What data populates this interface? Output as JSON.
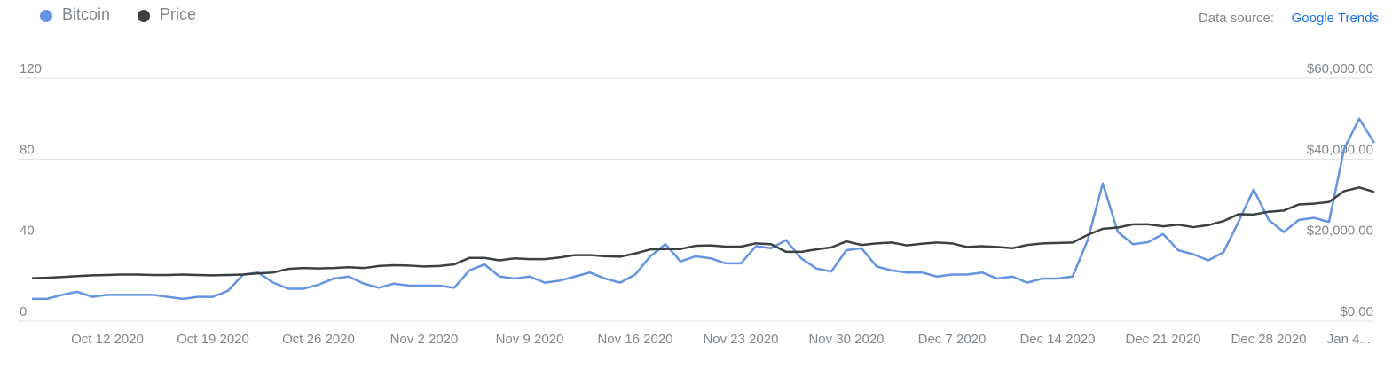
{
  "chart_data": {
    "type": "line",
    "source_label": "Data source:",
    "source_link": "Google Trends",
    "x": [
      "2020-10-07",
      "2020-10-08",
      "2020-10-09",
      "2020-10-10",
      "2020-10-11",
      "2020-10-12",
      "2020-10-13",
      "2020-10-14",
      "2020-10-15",
      "2020-10-16",
      "2020-10-17",
      "2020-10-18",
      "2020-10-19",
      "2020-10-20",
      "2020-10-21",
      "2020-10-22",
      "2020-10-23",
      "2020-10-24",
      "2020-10-25",
      "2020-10-26",
      "2020-10-27",
      "2020-10-28",
      "2020-10-29",
      "2020-10-30",
      "2020-10-31",
      "2020-11-01",
      "2020-11-02",
      "2020-11-03",
      "2020-11-04",
      "2020-11-05",
      "2020-11-06",
      "2020-11-07",
      "2020-11-08",
      "2020-11-09",
      "2020-11-10",
      "2020-11-11",
      "2020-11-12",
      "2020-11-13",
      "2020-11-14",
      "2020-11-15",
      "2020-11-16",
      "2020-11-17",
      "2020-11-18",
      "2020-11-19",
      "2020-11-20",
      "2020-11-21",
      "2020-11-22",
      "2020-11-23",
      "2020-11-24",
      "2020-11-25",
      "2020-11-26",
      "2020-11-27",
      "2020-11-28",
      "2020-11-29",
      "2020-11-30",
      "2020-12-01",
      "2020-12-02",
      "2020-12-03",
      "2020-12-04",
      "2020-12-05",
      "2020-12-06",
      "2020-12-07",
      "2020-12-08",
      "2020-12-09",
      "2020-12-10",
      "2020-12-11",
      "2020-12-12",
      "2020-12-13",
      "2020-12-14",
      "2020-12-15",
      "2020-12-16",
      "2020-12-17",
      "2020-12-18",
      "2020-12-19",
      "2020-12-20",
      "2020-12-21",
      "2020-12-22",
      "2020-12-23",
      "2020-12-24",
      "2020-12-25",
      "2020-12-26",
      "2020-12-27",
      "2020-12-28",
      "2020-12-29",
      "2020-12-30",
      "2020-12-31",
      "2021-01-01",
      "2021-01-02",
      "2021-01-03",
      "2021-01-04"
    ],
    "xticks": [
      {
        "value": "2020-10-12",
        "label": "Oct 12 2020"
      },
      {
        "value": "2020-10-19",
        "label": "Oct 19 2020"
      },
      {
        "value": "2020-10-26",
        "label": "Oct 26 2020"
      },
      {
        "value": "2020-11-02",
        "label": "Nov 2 2020"
      },
      {
        "value": "2020-11-09",
        "label": "Nov 9 2020"
      },
      {
        "value": "2020-11-16",
        "label": "Nov 16 2020"
      },
      {
        "value": "2020-11-23",
        "label": "Nov 23 2020"
      },
      {
        "value": "2020-11-30",
        "label": "Nov 30 2020"
      },
      {
        "value": "2020-12-07",
        "label": "Dec 7 2020"
      },
      {
        "value": "2020-12-14",
        "label": "Dec 14 2020"
      },
      {
        "value": "2020-12-21",
        "label": "Dec 21 2020"
      },
      {
        "value": "2020-12-28",
        "label": "Dec 28 2020"
      },
      {
        "value": "2021-01-04",
        "label": "Jan 4..."
      }
    ],
    "ylim": [
      0,
      120
    ],
    "yticks": [
      0,
      40,
      80,
      120
    ],
    "y2lim": [
      0,
      60000
    ],
    "y2ticks": [
      {
        "value": 0,
        "label": "$0.00"
      },
      {
        "value": 20000,
        "label": "$20,000.00"
      },
      {
        "value": 40000,
        "label": "$40,000.00"
      },
      {
        "value": 60000,
        "label": "$60,000.00"
      }
    ],
    "grid": true,
    "series": [
      {
        "name": "Bitcoin",
        "color": "#6394e0",
        "values": [
          11,
          11,
          13,
          14.5,
          12,
          13,
          13,
          13,
          13,
          12,
          11,
          12,
          12,
          15,
          23,
          24,
          19,
          16,
          16,
          18,
          21,
          22,
          18.5,
          16.5,
          18.5,
          17.5,
          17.5,
          17.5,
          16.5,
          25,
          28,
          22,
          21,
          22,
          19,
          20,
          22,
          24,
          21,
          19,
          23,
          32,
          38,
          29.5,
          32,
          31,
          28.5,
          28.5,
          37,
          36,
          40,
          31,
          26,
          24.5,
          35,
          36,
          27,
          25,
          24,
          24,
          22,
          23,
          23,
          24,
          21,
          22,
          19,
          21,
          21,
          22,
          40,
          68,
          44,
          38,
          39,
          43,
          35,
          33,
          30,
          34,
          49,
          65,
          50,
          44,
          50,
          51,
          49,
          85,
          100,
          88
        ]
      },
      {
        "name": "Price",
        "color": "#3c4043",
        "axis": "y2",
        "values": [
          10600,
          10700,
          10900,
          11100,
          11300,
          11400,
          11500,
          11500,
          11400,
          11400,
          11500,
          11400,
          11300,
          11400,
          11500,
          11800,
          12000,
          12900,
          13100,
          13000,
          13100,
          13300,
          13100,
          13600,
          13800,
          13700,
          13500,
          13600,
          14000,
          15600,
          15600,
          15000,
          15500,
          15300,
          15300,
          15700,
          16300,
          16300,
          16000,
          15900,
          16700,
          17700,
          17800,
          17800,
          18600,
          18700,
          18400,
          18400,
          19200,
          19000,
          17100,
          17100,
          17700,
          18200,
          19700,
          18800,
          19200,
          19400,
          18700,
          19100,
          19400,
          19200,
          18300,
          18500,
          18300,
          18000,
          18800,
          19200,
          19300,
          19400,
          21300,
          22800,
          23100,
          23900,
          23900,
          23400,
          23800,
          23200,
          23700,
          24700,
          26400,
          26300,
          27000,
          27300,
          28800,
          29000,
          29400,
          32100,
          33000,
          31900
        ]
      }
    ]
  }
}
